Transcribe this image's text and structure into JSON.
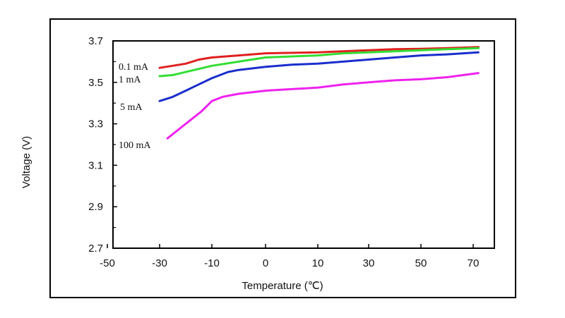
{
  "chart_data": {
    "type": "line",
    "title": "",
    "xlabel": "Temperature (℃)",
    "ylabel": "Voltage (V)",
    "xlim": [
      -50,
      75
    ],
    "ylim": [
      2.7,
      3.7
    ],
    "xticks": [
      "-50",
      "-30",
      "-10",
      "0",
      "10",
      "30",
      "50",
      "70"
    ],
    "yticks": [
      "3.7",
      "3.5",
      "3.3",
      "3.1",
      "2.9",
      "2.7"
    ],
    "grid": false,
    "legend": "inline labels",
    "series": [
      {
        "name": "0.1 mA",
        "color": "#e02020",
        "x": [
          -30,
          -25,
          -20,
          -15,
          -10,
          -5,
          0,
          10,
          20,
          30,
          40,
          50,
          60,
          72
        ],
        "y": [
          3.57,
          3.58,
          3.59,
          3.61,
          3.62,
          3.63,
          3.64,
          3.645,
          3.65,
          3.655,
          3.66,
          3.662,
          3.665,
          3.67
        ]
      },
      {
        "name": "1 mA",
        "color": "#33dd33",
        "x": [
          -30,
          -25,
          -20,
          -15,
          -10,
          -5,
          0,
          10,
          20,
          30,
          40,
          50,
          60,
          72
        ],
        "y": [
          3.53,
          3.535,
          3.55,
          3.565,
          3.58,
          3.6,
          3.62,
          3.63,
          3.64,
          3.645,
          3.65,
          3.655,
          3.66,
          3.665
        ]
      },
      {
        "name": "5 mA",
        "color": "#1a2ecc",
        "x": [
          -30,
          -25,
          -20,
          -15,
          -10,
          -7,
          -5,
          0,
          5,
          10,
          20,
          30,
          40,
          50,
          60,
          72
        ],
        "y": [
          3.41,
          3.43,
          3.46,
          3.49,
          3.52,
          3.55,
          3.56,
          3.575,
          3.585,
          3.59,
          3.6,
          3.61,
          3.62,
          3.63,
          3.635,
          3.645
        ]
      },
      {
        "name": "100 mA",
        "color": "#ee22ee",
        "x": [
          -27,
          -22,
          -18,
          -14,
          -10,
          -8,
          -5,
          0,
          10,
          20,
          30,
          40,
          50,
          60,
          72
        ],
        "y": [
          3.23,
          3.28,
          3.32,
          3.36,
          3.41,
          3.43,
          3.445,
          3.46,
          3.475,
          3.49,
          3.5,
          3.51,
          3.515,
          3.525,
          3.545
        ]
      }
    ]
  }
}
